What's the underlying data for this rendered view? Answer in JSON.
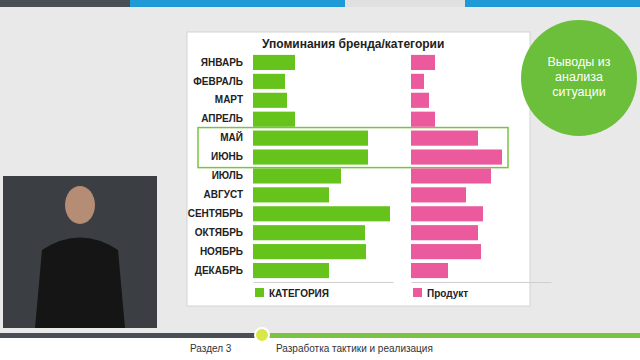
{
  "chart_data": {
    "type": "bar",
    "orientation": "horizontal",
    "title": "Упоминания бренда/категории",
    "categories": [
      "ЯНВАРЬ",
      "ФЕВРАЛЬ",
      "МАРТ",
      "АПРЕЛЬ",
      "МАЙ",
      "ИЮНЬ",
      "ИЮЛЬ",
      "АВГУСТ",
      "СЕНТЯБРЬ",
      "ОКТЯБРЬ",
      "НОЯБРЬ",
      "ДЕКАБРЬ"
    ],
    "series": [
      {
        "name": "КАТЕГОРИЯ",
        "color": "#66c31c",
        "values": [
          42,
          32,
          34,
          42,
          115,
          115,
          88,
          76,
          137,
          112,
          113,
          76
        ]
      },
      {
        "name": "Продукт",
        "color": "#ea5a9d",
        "values": [
          24,
          13,
          18,
          24,
          67,
          91,
          80,
          55,
          72,
          67,
          70,
          37
        ]
      }
    ],
    "xlim": [
      0,
      140
    ],
    "tick_labels": "y",
    "legend": "bottom",
    "grid": false
  },
  "slide": {
    "badge": [
      "Выводы из",
      "анализа",
      "ситуации"
    ],
    "section": "Раздел 3",
    "section_title": "Разработка тактики и реализация"
  }
}
